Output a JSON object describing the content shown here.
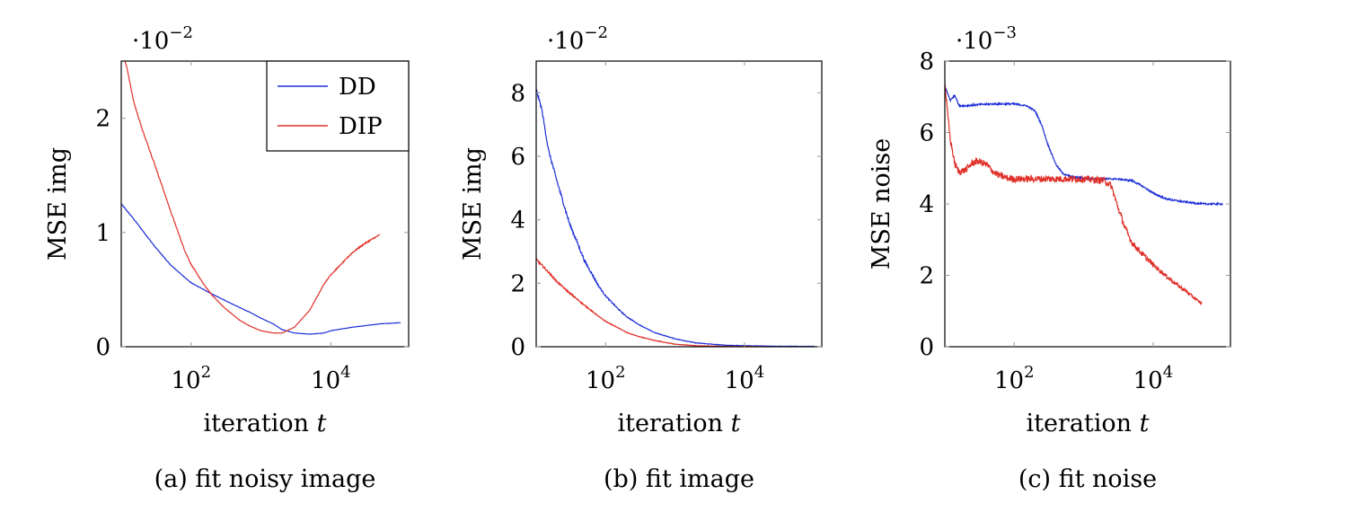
{
  "chart_data": [
    {
      "type": "line",
      "caption": "(a) fit noisy image",
      "xlabel": "iteration",
      "xlabel_var": "t",
      "ylabel": "MSE img",
      "xscale": "log",
      "xlim": [
        10,
        130000
      ],
      "ylim": [
        0,
        2.5
      ],
      "y_multiplier": "·10",
      "y_exponent": "−2",
      "yticks": [
        0,
        1,
        2
      ],
      "yticklabels": [
        "0",
        "1",
        "2"
      ],
      "xticks": [
        100,
        10000
      ],
      "xticklabels": [
        {
          "base": "10",
          "exp": "2"
        },
        {
          "base": "10",
          "exp": "4"
        }
      ],
      "legend": {
        "position": "top-right",
        "entries": [
          "DD",
          "DIP"
        ]
      },
      "series": [
        {
          "name": "DD",
          "color": "#1c2fd6",
          "noise": 0.015,
          "x": [
            10,
            15,
            20,
            30,
            50,
            80,
            100,
            200,
            400,
            700,
            1000,
            1500,
            2000,
            3000,
            5000,
            8000,
            10000,
            20000,
            50000,
            100000
          ],
          "y": [
            1.25,
            1.12,
            1.02,
            0.88,
            0.72,
            0.61,
            0.56,
            0.46,
            0.37,
            0.3,
            0.25,
            0.2,
            0.15,
            0.12,
            0.11,
            0.12,
            0.14,
            0.17,
            0.2,
            0.21
          ]
        },
        {
          "name": "DIP",
          "color": "#e0312a",
          "noise": 0.025,
          "x": [
            10,
            12,
            15,
            20,
            30,
            50,
            80,
            100,
            150,
            200,
            300,
            500,
            700,
            1000,
            1500,
            2000,
            3000,
            5000,
            8000,
            10000,
            15000,
            20000,
            30000,
            50000
          ],
          "y": [
            2.6,
            2.45,
            2.15,
            1.9,
            1.6,
            1.2,
            0.85,
            0.72,
            0.55,
            0.45,
            0.34,
            0.23,
            0.18,
            0.14,
            0.12,
            0.12,
            0.17,
            0.32,
            0.55,
            0.63,
            0.74,
            0.82,
            0.9,
            0.98
          ]
        }
      ]
    },
    {
      "type": "line",
      "caption": "(b) fit image",
      "xlabel": "iteration",
      "xlabel_var": "t",
      "ylabel": "MSE img",
      "xscale": "log",
      "xlim": [
        10,
        130000
      ],
      "ylim": [
        0,
        9
      ],
      "y_multiplier": "·10",
      "y_exponent": "−2",
      "yticks": [
        0,
        2,
        4,
        6,
        8
      ],
      "yticklabels": [
        "0",
        "2",
        "4",
        "6",
        "8"
      ],
      "xticks": [
        100,
        10000
      ],
      "xticklabels": [
        {
          "base": "10",
          "exp": "2"
        },
        {
          "base": "10",
          "exp": "4"
        }
      ],
      "series": [
        {
          "name": "DD",
          "color": "#1c2fd6",
          "noise": 0.06,
          "x": [
            10,
            12,
            15,
            20,
            30,
            50,
            80,
            100,
            150,
            200,
            300,
            500,
            1000,
            2000,
            5000,
            10000,
            20000,
            50000,
            100000
          ],
          "y": [
            8.1,
            7.5,
            6.2,
            5.2,
            3.9,
            2.7,
            1.9,
            1.6,
            1.2,
            0.95,
            0.7,
            0.45,
            0.25,
            0.12,
            0.05,
            0.03,
            0.02,
            0.01,
            0.01
          ]
        },
        {
          "name": "DIP",
          "color": "#e0312a",
          "noise": 0.05,
          "x": [
            10,
            15,
            20,
            30,
            50,
            80,
            100,
            150,
            200,
            300,
            500,
            1000,
            2000,
            5000,
            10000,
            20000
          ],
          "y": [
            2.75,
            2.35,
            2.05,
            1.7,
            1.3,
            0.95,
            0.8,
            0.6,
            0.45,
            0.32,
            0.2,
            0.08,
            0.03,
            0.01,
            0.005,
            0.0
          ]
        }
      ]
    },
    {
      "type": "line",
      "caption": "(c) fit noise",
      "xlabel": "iteration",
      "xlabel_var": "t",
      "ylabel": "MSE noise",
      "xscale": "log",
      "xlim": [
        10,
        130000
      ],
      "ylim": [
        0,
        8
      ],
      "y_multiplier": "·10",
      "y_exponent": "−3",
      "yticks": [
        0,
        2,
        4,
        6,
        8
      ],
      "yticklabels": [
        "0",
        "2",
        "4",
        "6",
        "8"
      ],
      "xticks": [
        100,
        10000
      ],
      "xticklabels": [
        {
          "base": "10",
          "exp": "2"
        },
        {
          "base": "10",
          "exp": "4"
        }
      ],
      "series": [
        {
          "name": "DD",
          "color": "#1c2fd6",
          "noise": 0.03,
          "x": [
            10,
            12,
            14,
            16,
            20,
            30,
            50,
            80,
            100,
            150,
            200,
            250,
            300,
            400,
            500,
            700,
            1000,
            2000,
            3000,
            5000,
            7000,
            10000,
            15000,
            20000,
            30000,
            50000,
            80000,
            100000
          ],
          "y": [
            7.3,
            6.9,
            7.05,
            6.75,
            6.75,
            6.78,
            6.8,
            6.8,
            6.8,
            6.75,
            6.6,
            6.2,
            5.7,
            5.1,
            4.85,
            4.75,
            4.72,
            4.7,
            4.7,
            4.65,
            4.5,
            4.3,
            4.15,
            4.1,
            4.05,
            4.0,
            4.0,
            4.0
          ]
        },
        {
          "name": "DIP",
          "color": "#e0312a",
          "noise": 0.12,
          "x": [
            10,
            11,
            12,
            14,
            16,
            20,
            25,
            30,
            40,
            50,
            60,
            80,
            100,
            200,
            500,
            1000,
            2000,
            2500,
            3000,
            4000,
            5000,
            7000,
            10000,
            15000,
            20000,
            30000,
            50000
          ],
          "y": [
            7.4,
            6.5,
            5.8,
            5.1,
            4.9,
            4.95,
            5.15,
            5.2,
            5.1,
            4.9,
            4.8,
            4.72,
            4.7,
            4.7,
            4.7,
            4.7,
            4.65,
            4.5,
            4.0,
            3.3,
            2.9,
            2.6,
            2.3,
            2.0,
            1.8,
            1.55,
            1.2
          ]
        }
      ]
    }
  ]
}
